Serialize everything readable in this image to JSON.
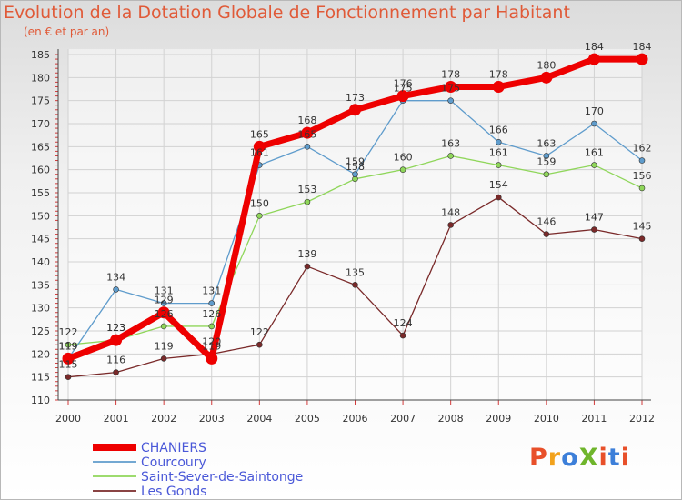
{
  "title": "Evolution de la Dotation Globale de Fonctionnement par Habitant",
  "subtitle": "(en € et par an)",
  "logo": {
    "text": "ProXiti",
    "colors": [
      "#e8502a",
      "#f2a21c",
      "#3d7fd9",
      "#6fb52c",
      "#e8502a",
      "#3d7fd9",
      "#e8502a"
    ]
  },
  "chart_data": {
    "type": "line",
    "title": "Evolution de la Dotation Globale de Fonctionnement par Habitant",
    "subtitle": "(en € et par an)",
    "x": [
      "2000",
      "2001",
      "2002",
      "2003",
      "2004",
      "2005",
      "2006",
      "2007",
      "2008",
      "2009",
      "2010",
      "2011",
      "2012"
    ],
    "ylim": [
      110,
      185
    ],
    "yticks": [
      110,
      115,
      120,
      125,
      130,
      135,
      140,
      145,
      150,
      155,
      160,
      165,
      170,
      175,
      180,
      185
    ],
    "grid": true,
    "legend_position": "bottom-left",
    "series": [
      {
        "name": "Les Gonds",
        "color": "#7a2a2a",
        "values": [
          115,
          116,
          119,
          120,
          122,
          139,
          135,
          124,
          148,
          154,
          146,
          147,
          145
        ]
      },
      {
        "name": "Saint-Sever-de-Saintonge",
        "color": "#8fd65a",
        "values": [
          122,
          123,
          126,
          126,
          150,
          153,
          158,
          160,
          163,
          161,
          159,
          161,
          156
        ]
      },
      {
        "name": "Courcoury",
        "color": "#5f9ccc",
        "values": [
          119,
          134,
          131,
          131,
          161,
          165,
          159,
          175,
          175,
          166,
          163,
          170,
          162
        ]
      },
      {
        "name": "CHANIERS",
        "color": "#ee0000",
        "values": [
          119,
          123,
          129,
          119,
          165,
          168,
          173,
          176,
          178,
          178,
          180,
          184,
          184
        ]
      }
    ]
  }
}
